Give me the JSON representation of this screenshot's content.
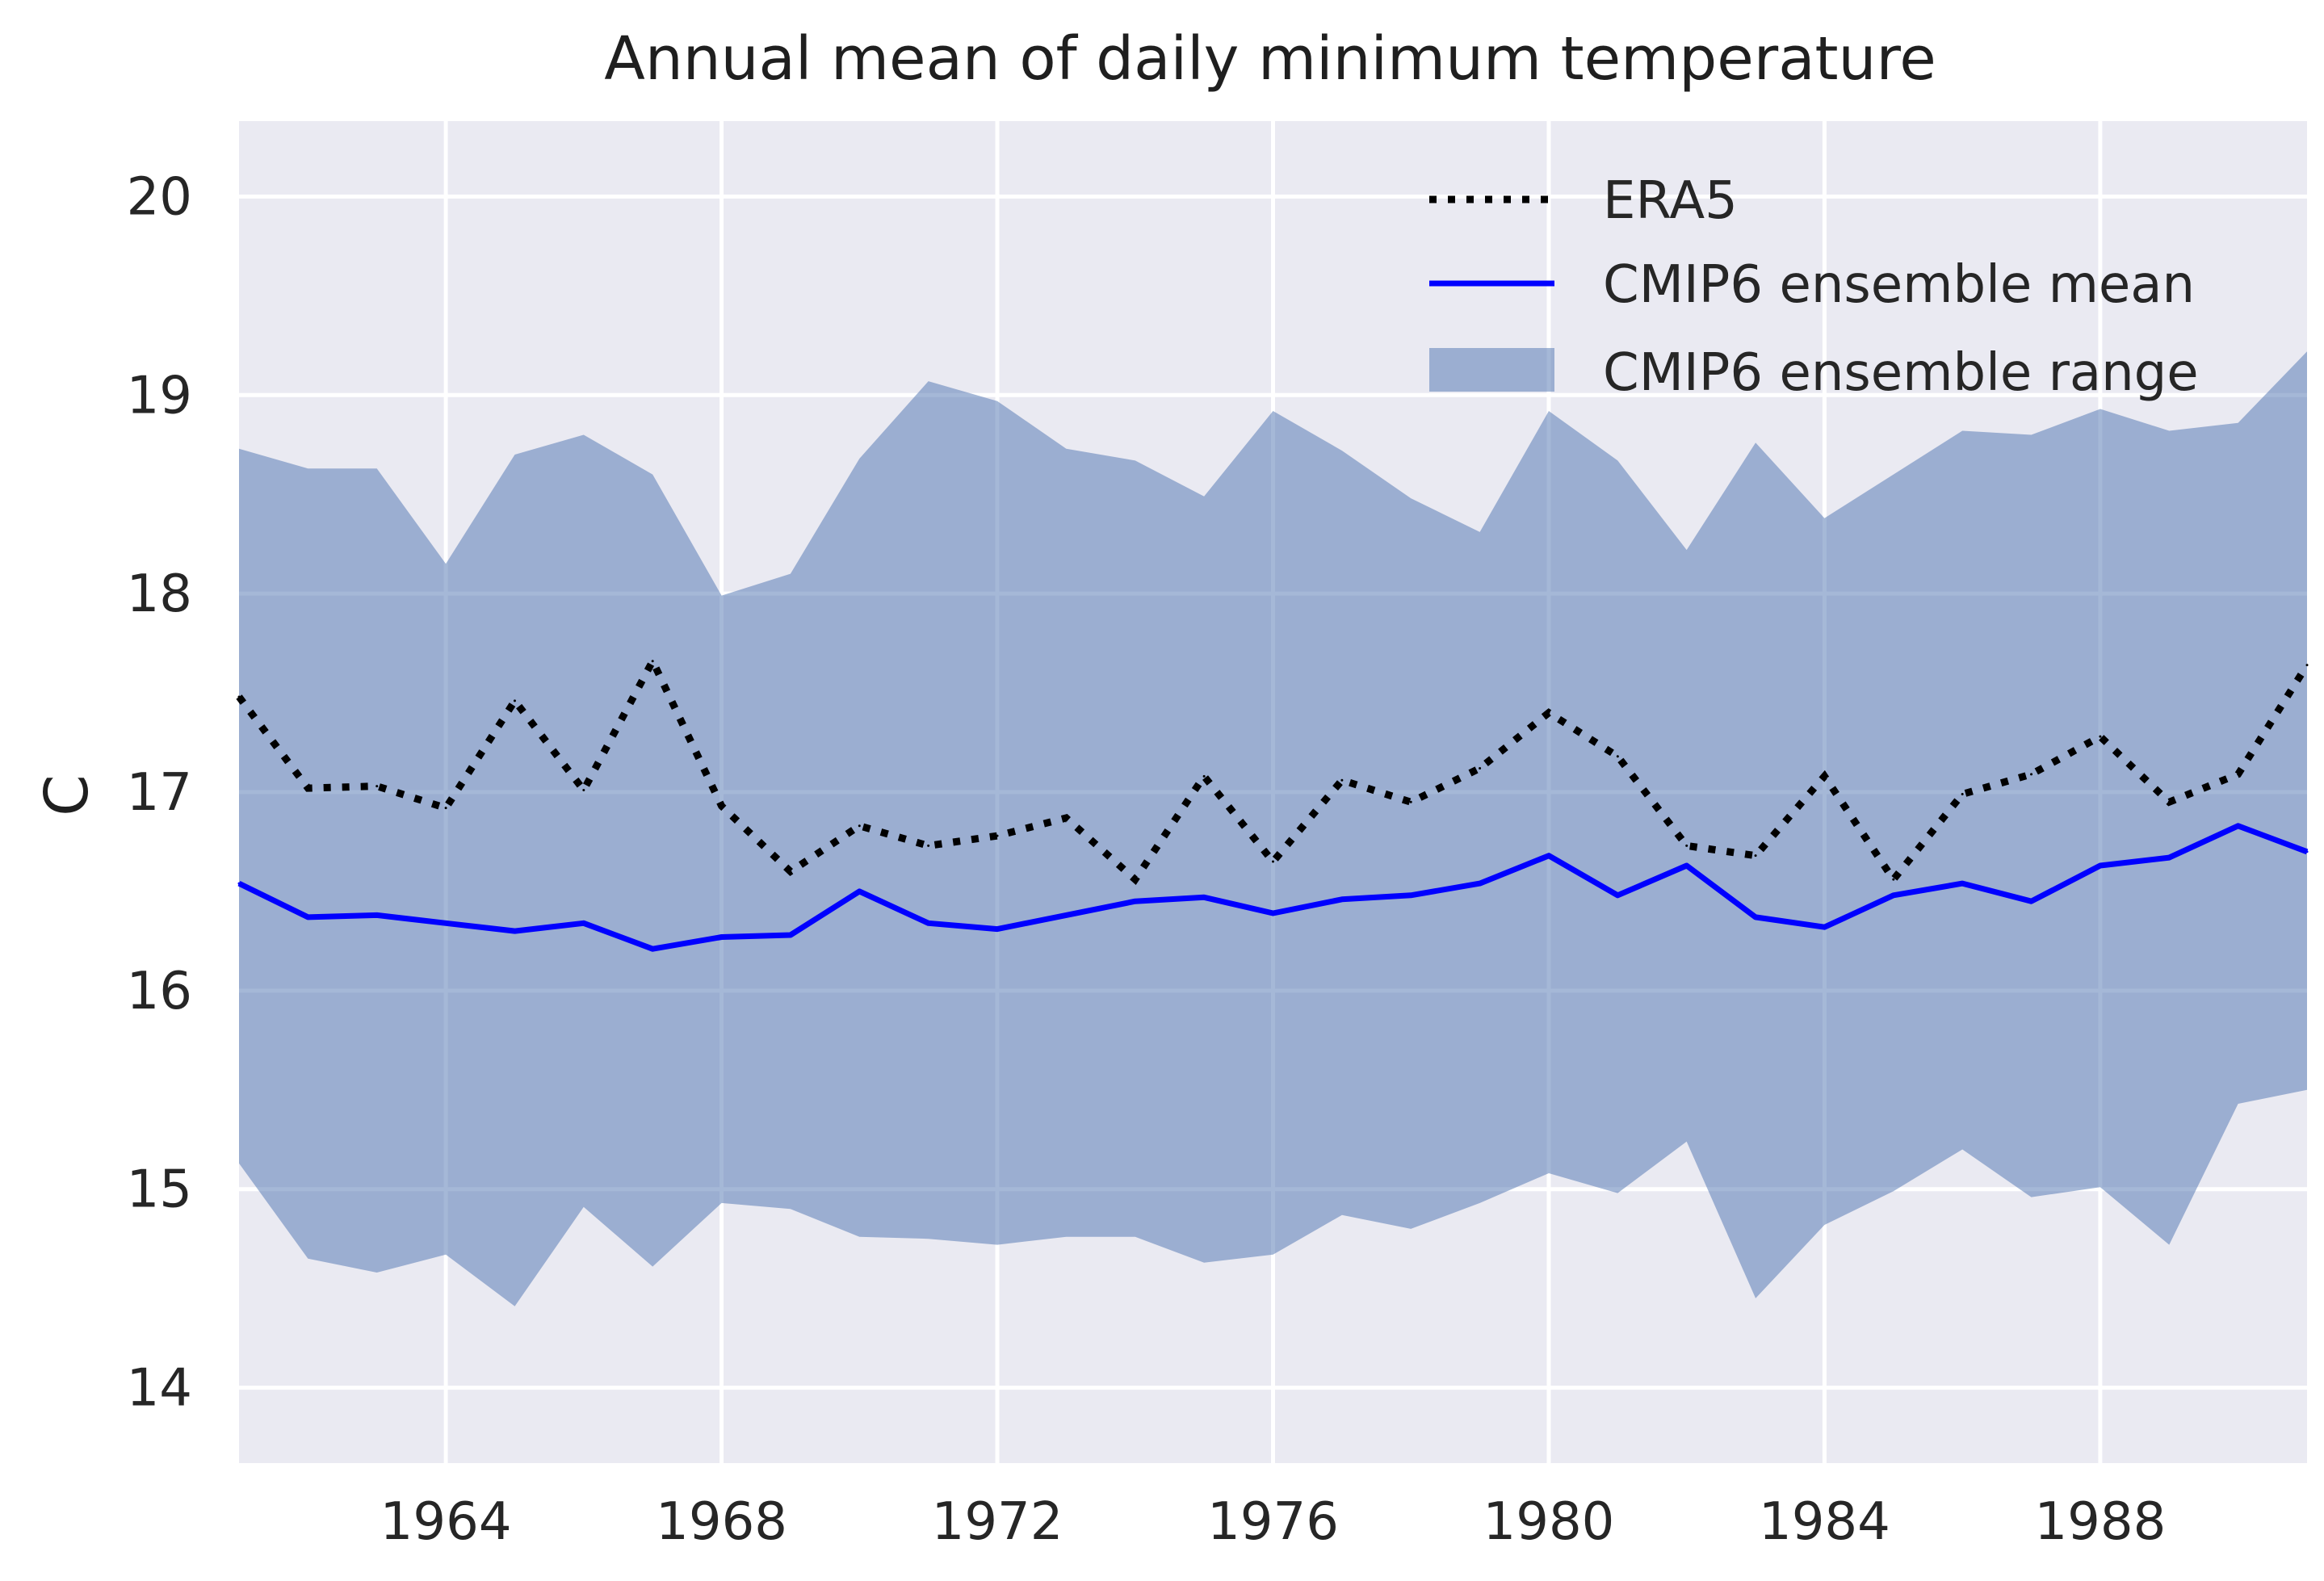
{
  "chart_data": {
    "type": "line",
    "title": "Annual mean of daily minimum temperature",
    "xlabel": "",
    "ylabel": "C",
    "xlim": [
      1961,
      1991
    ],
    "ylim": [
      13.62,
      20.38
    ],
    "x_ticks": [
      1964,
      1968,
      1972,
      1976,
      1980,
      1984,
      1988
    ],
    "y_ticks": [
      14,
      15,
      16,
      17,
      18,
      19,
      20
    ],
    "grid": true,
    "legend_position": "top-right",
    "x": [
      1961,
      1962,
      1963,
      1964,
      1965,
      1966,
      1967,
      1968,
      1969,
      1970,
      1971,
      1972,
      1973,
      1974,
      1975,
      1976,
      1977,
      1978,
      1979,
      1980,
      1981,
      1982,
      1983,
      1984,
      1985,
      1986,
      1987,
      1988,
      1989,
      1990,
      1991
    ],
    "series": [
      {
        "name": "ERA5",
        "style": "dotted",
        "color": "#000000",
        "values": [
          17.48,
          17.02,
          17.03,
          16.92,
          17.46,
          17.01,
          17.66,
          16.93,
          16.6,
          16.83,
          16.73,
          16.78,
          16.87,
          16.56,
          17.08,
          16.65,
          17.06,
          16.95,
          17.12,
          17.4,
          17.18,
          16.73,
          16.68,
          17.08,
          16.56,
          16.99,
          17.09,
          17.28,
          16.95,
          17.09,
          17.64
        ]
      },
      {
        "name": "CMIP6 ensemble mean",
        "style": "solid",
        "color": "#0000ff",
        "values": [
          16.54,
          16.37,
          16.38,
          16.34,
          16.3,
          16.34,
          16.21,
          16.27,
          16.28,
          16.5,
          16.34,
          16.31,
          16.38,
          16.45,
          16.47,
          16.39,
          16.46,
          16.48,
          16.54,
          16.68,
          16.48,
          16.63,
          16.37,
          16.32,
          16.48,
          16.54,
          16.45,
          16.63,
          16.67,
          16.83,
          16.7
        ]
      },
      {
        "name": "CMIP6 ensemble range",
        "style": "band",
        "color": "#4c72b0",
        "upper": [
          18.73,
          18.63,
          18.63,
          18.15,
          18.7,
          18.8,
          18.6,
          17.99,
          18.1,
          18.68,
          19.07,
          18.97,
          18.73,
          18.67,
          18.49,
          18.92,
          18.72,
          18.48,
          18.31,
          18.92,
          18.67,
          18.22,
          18.76,
          18.38,
          18.6,
          18.82,
          18.8,
          18.93,
          18.82,
          18.86,
          19.22
        ]
      },
      {
        "name": "CMIP6 ensemble range lower",
        "style": "band-lower",
        "color": "#4c72b0",
        "values": [
          15.13,
          14.65,
          14.58,
          14.67,
          14.41,
          14.91,
          14.61,
          14.93,
          14.9,
          14.76,
          14.75,
          14.72,
          14.76,
          14.76,
          14.63,
          14.67,
          14.87,
          14.8,
          14.93,
          15.08,
          14.98,
          15.24,
          14.45,
          14.82,
          14.99,
          15.2,
          14.96,
          15.01,
          14.72,
          15.43,
          15.5
        ]
      }
    ],
    "legend": [
      "ERA5",
      "CMIP6 ensemble mean",
      "CMIP6 ensemble range"
    ]
  }
}
